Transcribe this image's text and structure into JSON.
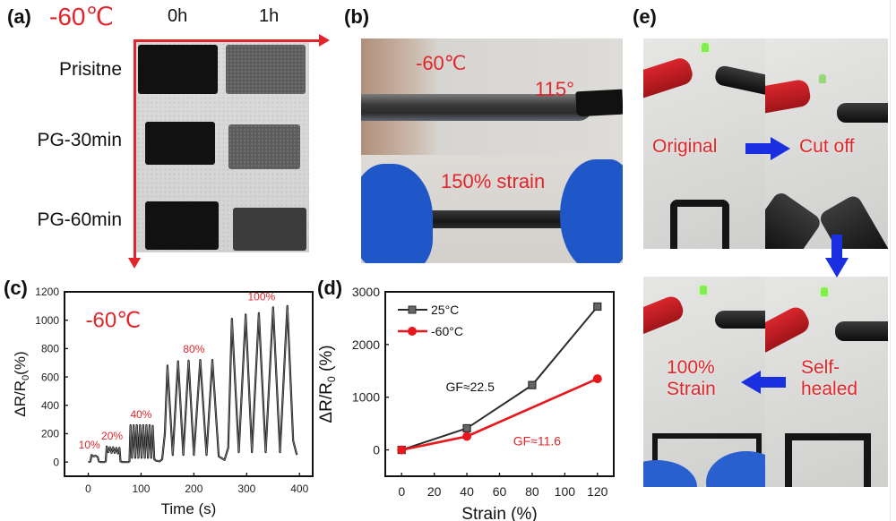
{
  "panels": {
    "a": {
      "label": "(a)",
      "temperature": "-60℃",
      "columns": [
        "0h",
        "1h"
      ],
      "rows": [
        "Prisitne",
        "PG-30min",
        "PG-60min"
      ]
    },
    "b": {
      "label": "(b)",
      "top_temperature": "-60℃",
      "top_angle": "115°",
      "bottom_caption": "150% strain"
    },
    "c": {
      "label": "(c)",
      "temperature": "-60℃"
    },
    "d": {
      "label": "(d)",
      "gf_25": "GF≈22.5",
      "gf_m60": "GF≈11.6"
    },
    "e": {
      "label": "(e)",
      "steps": {
        "original": "Original",
        "cut_off": "Cut off",
        "self_healed_1": "Self-",
        "self_healed_2": "healed",
        "strain_1": "100%",
        "strain_2": "Strain"
      }
    }
  },
  "colors": {
    "accent_red": "#e0262b",
    "series_black": "#2b2b2b",
    "series_red": "#e8171d",
    "arrow_blue": "#1a2fe0"
  },
  "chart_data": [
    {
      "id": "c",
      "type": "line",
      "title": "",
      "annotation": "-60℃",
      "xlabel": "Time (s)",
      "ylabel": "ΔR/R0(%)",
      "xlim": [
        -45,
        425
      ],
      "ylim": [
        -100,
        1200
      ],
      "xticks": [
        0,
        100,
        200,
        300,
        400
      ],
      "yticks": [
        0,
        200,
        400,
        600,
        800,
        1000,
        1200
      ],
      "strain_labels": [
        {
          "text": "10%",
          "x": 2,
          "y": 95
        },
        {
          "text": "20%",
          "x": 45,
          "y": 160
        },
        {
          "text": "40%",
          "x": 100,
          "y": 310
        },
        {
          "text": "80%",
          "x": 200,
          "y": 770
        },
        {
          "text": "100%",
          "x": 328,
          "y": 1140
        }
      ],
      "series": [
        {
          "name": "-60℃",
          "x": [
            0,
            4,
            6,
            10,
            14,
            18,
            20,
            24,
            30,
            33,
            35,
            38,
            41,
            44,
            47,
            50,
            53,
            56,
            59,
            61,
            65,
            75,
            78,
            80,
            83,
            86,
            89,
            92,
            95,
            98,
            101,
            104,
            107,
            110,
            113,
            116,
            119,
            122,
            125,
            128,
            135,
            140,
            145,
            150,
            160,
            170,
            180,
            190,
            200,
            212,
            224,
            235,
            247,
            258,
            265,
            272,
            285,
            298,
            310,
            323,
            336,
            350,
            363,
            377,
            388,
            395
          ],
          "y": [
            0,
            5,
            50,
            40,
            45,
            35,
            5,
            0,
            0,
            5,
            110,
            70,
            105,
            65,
            105,
            65,
            100,
            60,
            100,
            5,
            0,
            0,
            5,
            260,
            30,
            260,
            30,
            260,
            30,
            260,
            30,
            260,
            30,
            260,
            30,
            260,
            30,
            255,
            20,
            10,
            5,
            20,
            200,
            680,
            50,
            710,
            50,
            715,
            50,
            720,
            50,
            720,
            40,
            15,
            100,
            1010,
            70,
            1040,
            70,
            1050,
            70,
            1090,
            70,
            1100,
            150,
            50
          ]
        }
      ]
    },
    {
      "id": "d",
      "type": "line",
      "title": "",
      "xlabel": "Strain (%)",
      "ylabel": "ΔR/R0 (%)",
      "xlim": [
        -10,
        130
      ],
      "ylim": [
        -500,
        3000
      ],
      "xticks": [
        0,
        20,
        40,
        60,
        80,
        100,
        120
      ],
      "yticks": [
        0,
        1000,
        2000,
        3000
      ],
      "legend_position": "upper left",
      "categories": [
        0,
        40,
        80,
        120
      ],
      "series": [
        {
          "name": "25°C",
          "marker": "square",
          "color": "#2b2b2b",
          "x": [
            0,
            40,
            80,
            120
          ],
          "values": [
            0,
            410,
            1230,
            2720
          ]
        },
        {
          "name": "-60°C",
          "marker": "circle",
          "color": "#e8171d",
          "x": [
            0,
            40,
            120
          ],
          "values": [
            0,
            256,
            1350
          ]
        }
      ],
      "annotations": [
        {
          "text": "GF≈22.5",
          "x": 42,
          "y": 1200,
          "color": "#111111"
        },
        {
          "text": "GF≈11.6",
          "x": 83,
          "y": 170,
          "color": "#e0262b"
        }
      ]
    }
  ]
}
